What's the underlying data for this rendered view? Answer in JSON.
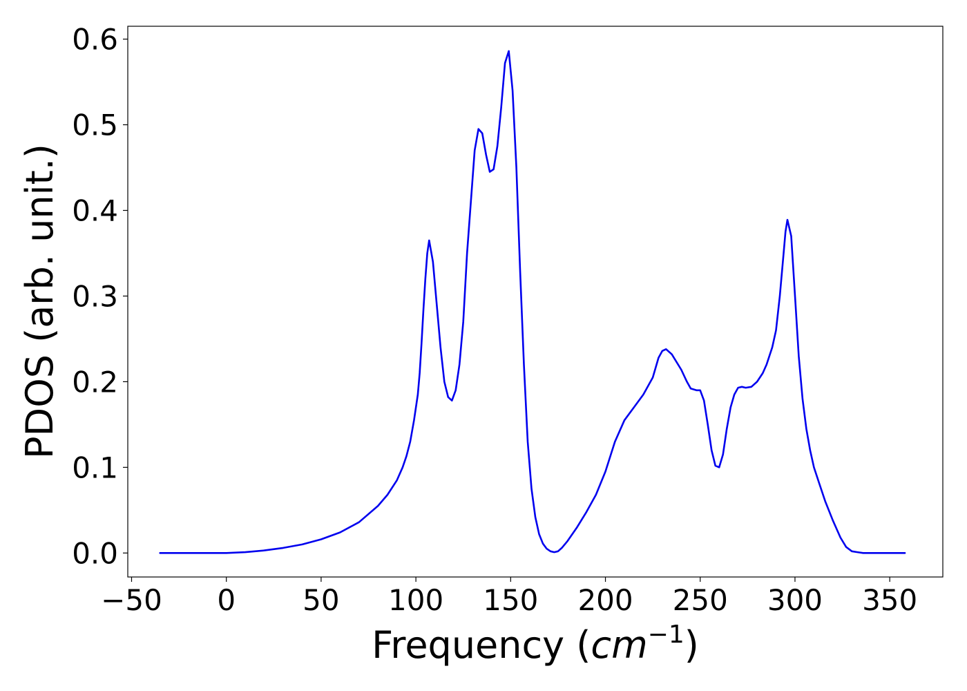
{
  "chart_data": {
    "type": "line",
    "title": "",
    "xlabel": "Frequency",
    "xlabel_unit": "cm",
    "xlabel_unit_exponent": "−1",
    "ylabel": "PDOS (arb. unit.)",
    "xlim": [
      -52,
      378
    ],
    "ylim": [
      -0.028,
      0.615
    ],
    "xticks": [
      -50,
      0,
      50,
      100,
      150,
      200,
      250,
      300,
      350
    ],
    "xtick_labels": [
      "−50",
      "0",
      "50",
      "100",
      "150",
      "200",
      "250",
      "300",
      "350"
    ],
    "yticks": [
      0.0,
      0.1,
      0.2,
      0.3,
      0.4,
      0.5,
      0.6
    ],
    "ytick_labels": [
      "0.0",
      "0.1",
      "0.2",
      "0.3",
      "0.4",
      "0.5",
      "0.6"
    ],
    "grid": false,
    "legend": "none",
    "series": [
      {
        "color": "#0000ee",
        "x": [
          -35,
          0,
          10,
          20,
          30,
          40,
          50,
          60,
          70,
          80,
          85,
          90,
          93,
          95,
          97,
          99,
          101,
          102,
          103,
          104,
          105,
          106,
          107,
          109,
          111,
          113,
          115,
          117,
          119,
          121,
          123,
          125,
          127,
          129,
          131,
          133,
          135,
          137,
          139,
          141,
          143,
          145,
          147,
          149,
          151,
          153,
          155,
          157,
          159,
          161,
          163,
          165,
          167,
          169,
          171,
          173,
          175,
          177,
          180,
          185,
          190,
          195,
          200,
          205,
          210,
          215,
          220,
          225,
          228,
          230,
          232,
          235,
          240,
          243,
          245,
          248,
          250,
          252,
          254,
          256,
          258,
          260,
          262,
          264,
          266,
          268,
          270,
          272,
          274,
          277,
          280,
          283,
          285,
          288,
          290,
          292,
          294,
          295,
          296,
          298,
          300,
          302,
          304,
          306,
          308,
          310,
          313,
          316,
          320,
          324,
          327,
          330,
          333,
          336,
          358
        ],
        "y": [
          0.0,
          0.0,
          0.001,
          0.003,
          0.006,
          0.01,
          0.016,
          0.024,
          0.036,
          0.055,
          0.068,
          0.085,
          0.1,
          0.113,
          0.13,
          0.155,
          0.185,
          0.21,
          0.245,
          0.285,
          0.32,
          0.35,
          0.365,
          0.34,
          0.29,
          0.24,
          0.2,
          0.182,
          0.178,
          0.19,
          0.22,
          0.27,
          0.35,
          0.41,
          0.47,
          0.495,
          0.49,
          0.465,
          0.445,
          0.448,
          0.475,
          0.52,
          0.572,
          0.586,
          0.54,
          0.45,
          0.33,
          0.22,
          0.13,
          0.075,
          0.042,
          0.022,
          0.011,
          0.005,
          0.002,
          0.001,
          0.002,
          0.006,
          0.014,
          0.03,
          0.048,
          0.068,
          0.095,
          0.13,
          0.155,
          0.17,
          0.185,
          0.205,
          0.228,
          0.236,
          0.238,
          0.232,
          0.214,
          0.2,
          0.192,
          0.19,
          0.19,
          0.178,
          0.15,
          0.12,
          0.102,
          0.1,
          0.115,
          0.145,
          0.17,
          0.185,
          0.193,
          0.194,
          0.193,
          0.194,
          0.2,
          0.21,
          0.22,
          0.24,
          0.26,
          0.3,
          0.35,
          0.375,
          0.389,
          0.37,
          0.3,
          0.23,
          0.18,
          0.145,
          0.12,
          0.1,
          0.08,
          0.06,
          0.038,
          0.018,
          0.007,
          0.002,
          0.001,
          0.0,
          0.0
        ]
      }
    ]
  }
}
